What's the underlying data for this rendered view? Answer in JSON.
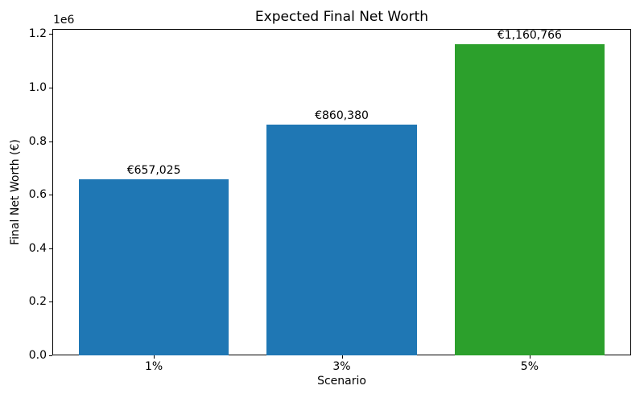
{
  "chart_data": {
    "type": "bar",
    "title": "Expected Final Net Worth",
    "xlabel": "Scenario",
    "ylabel": "Final Net Worth (€)",
    "categories": [
      "1%",
      "3%",
      "5%"
    ],
    "values": [
      657025,
      860380,
      1160766
    ],
    "value_labels": [
      "€657,025",
      "€860,380",
      "€1,160,766"
    ],
    "bar_colors": [
      "#1f77b4",
      "#1f77b4",
      "#2ca02c"
    ],
    "bar_width": 0.8,
    "xlim": [
      -0.54,
      2.54
    ],
    "ylim": [
      0,
      1218804
    ],
    "yticks": [
      0.0,
      0.2,
      0.4,
      0.6,
      0.8,
      1.0,
      1.2
    ],
    "ytick_labels": [
      "0.0",
      "0.2",
      "0.4",
      "0.6",
      "0.8",
      "1.0",
      "1.2"
    ],
    "y_offset_text": "1e6",
    "y_multiplier": 1000000,
    "grid": false,
    "legend": "none",
    "background_color": "#ffffff",
    "spine_color": "#000000"
  }
}
